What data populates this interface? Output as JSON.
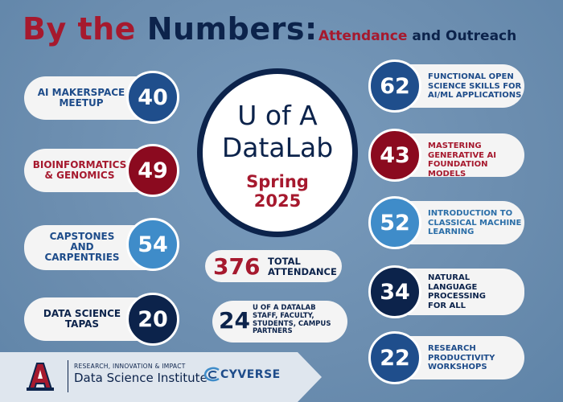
{
  "title": {
    "part1": "By the",
    "part2": "Numbers:",
    "sub1": "Attendance",
    "sub2": "and Outreach"
  },
  "center": {
    "line1": "U of A",
    "line2": "DataLab",
    "semester1": "Spring",
    "semester2": "2025"
  },
  "left": [
    {
      "label1": "AI MAKERSPACE",
      "label2": "MEETUP",
      "label3": "",
      "value": "40"
    },
    {
      "label1": "BIOINFORMATICS",
      "label2": "& GENOMICS",
      "label3": "",
      "value": "49"
    },
    {
      "label1": "CAPSTONES",
      "label2": "AND",
      "label3": "CARPENTRIES",
      "value": "54"
    },
    {
      "label1": "DATA SCIENCE",
      "label2": "TAPAS",
      "label3": "",
      "value": "20"
    }
  ],
  "right": [
    {
      "value": "62",
      "label1": "FUNCTIONAL OPEN",
      "label2": "SCIENCE SKILLS FOR",
      "label3": "AI/ML APPLICATIONS"
    },
    {
      "value": "43",
      "label1": "MASTERING",
      "label2": "GENERATIVE AI",
      "label3": "FOUNDATION MODELS"
    },
    {
      "value": "52",
      "label1": "INTRODUCTION TO",
      "label2": "CLASSICAL MACHINE",
      "label3": "LEARNING"
    },
    {
      "value": "34",
      "label1": "NATURAL",
      "label2": "LANGUAGE",
      "label3": "PROCESSING",
      "label4": "FOR ALL"
    },
    {
      "value": "22",
      "label1": "RESEARCH",
      "label2": "PRODUCTIVITY",
      "label3": "WORKSHOPS"
    }
  ],
  "total": {
    "value": "376",
    "label1": "TOTAL",
    "label2": "ATTENDANCE"
  },
  "staff": {
    "value": "24",
    "label1": "U OF A DATALAB",
    "label2": "STAFF, FACULTY,",
    "label3": "STUDENTS, CAMPUS",
    "label4": "PARTNERS"
  },
  "footer": {
    "small": "RESEARCH, INNOVATION & IMPACT",
    "institute": "Data Science Institute",
    "partner": "CYVERSE"
  },
  "colors": {
    "red": "#a6192e",
    "navy": "#0c234b",
    "blue": "#1e4c8a",
    "lightblue": "#3f8cc9"
  }
}
